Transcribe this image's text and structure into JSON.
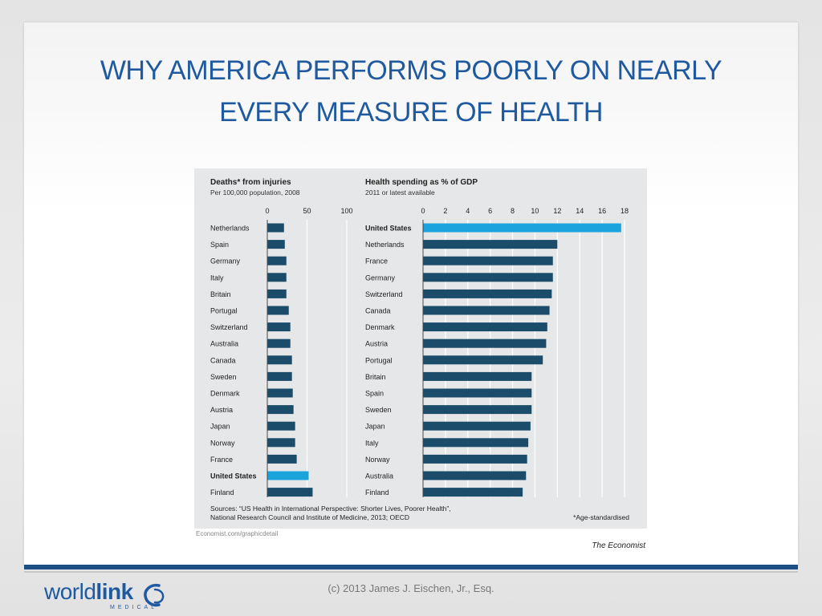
{
  "slide": {
    "title_line1": "WHY AMERICA PERFORMS POORLY ON NEARLY",
    "title_line2": "EVERY MEASURE OF HEALTH",
    "copyright": "(c) 2013 James J. Eischen, Jr., Esq.",
    "logo_word_regular": "world",
    "logo_word_bold": "link",
    "logo_sub": "MEDICAL"
  },
  "colors": {
    "title": "#1f5aa0",
    "bar": "#1b4d6b",
    "highlight": "#1aa3dc",
    "chart_bg": "#e6e7e8"
  },
  "chart_data": [
    {
      "type": "bar",
      "orientation": "horizontal",
      "title": "Deaths* from injuries",
      "subtitle": "Per 100,000 population, 2008",
      "xlim": [
        0,
        100
      ],
      "ticks": [
        0,
        50,
        100
      ],
      "grid": true,
      "highlight": "United States",
      "categories": [
        "Netherlands",
        "Spain",
        "Germany",
        "Italy",
        "Britain",
        "Portugal",
        "Switzerland",
        "Australia",
        "Canada",
        "Sweden",
        "Denmark",
        "Austria",
        "Japan",
        "Norway",
        "France",
        "United States",
        "Finland"
      ],
      "values": [
        21,
        22,
        24,
        24,
        24,
        27,
        29,
        29,
        31,
        31,
        32,
        33,
        35,
        35,
        37,
        52,
        57
      ]
    },
    {
      "type": "bar",
      "orientation": "horizontal",
      "title": "Health spending as % of GDP",
      "subtitle": "2011 or latest available",
      "xlim": [
        0,
        18
      ],
      "ticks": [
        0,
        2,
        4,
        6,
        8,
        10,
        12,
        14,
        16,
        18
      ],
      "grid": true,
      "highlight": "United States",
      "categories": [
        "United States",
        "Netherlands",
        "France",
        "Germany",
        "Switzerland",
        "Canada",
        "Denmark",
        "Austria",
        "Portugal",
        "Britain",
        "Spain",
        "Sweden",
        "Japan",
        "Italy",
        "Norway",
        "Australia",
        "Finland"
      ],
      "values": [
        17.7,
        12.0,
        11.6,
        11.6,
        11.5,
        11.3,
        11.1,
        11.0,
        10.7,
        9.7,
        9.7,
        9.7,
        9.6,
        9.4,
        9.3,
        9.2,
        8.9
      ]
    }
  ],
  "chart_footer": {
    "sources_line1": "Sources: “US Health in International Perspective: Shorter Lives, Poorer Health”,",
    "sources_line2": "National Research Council and Institute of Medicine, 2013; OECD",
    "footnote": "*Age-standardised",
    "link": "Economist.com/graphicdetail",
    "credit": "The Economist"
  }
}
